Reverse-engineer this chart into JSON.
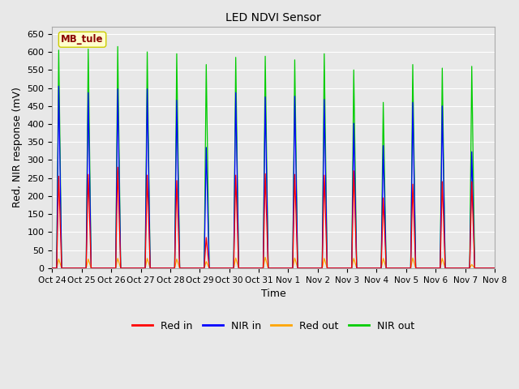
{
  "title": "LED NDVI Sensor",
  "xlabel": "Time",
  "ylabel": "Red, NIR response (mV)",
  "ylim": [
    0,
    670
  ],
  "yticks": [
    0,
    50,
    100,
    150,
    200,
    250,
    300,
    350,
    400,
    450,
    500,
    550,
    600,
    650
  ],
  "xtick_labels": [
    "Oct 24",
    "Oct 25",
    "Oct 26",
    "Oct 27",
    "Oct 28",
    "Oct 29",
    "Oct 30",
    "Oct 31",
    "Nov 1",
    "Nov 2",
    "Nov 3",
    "Nov 4",
    "Nov 5",
    "Nov 6",
    "Nov 7",
    "Nov 8"
  ],
  "annotation_text": "MB_tule",
  "colors": {
    "red_in": "#ff0000",
    "nir_in": "#0000ff",
    "red_out": "#ffa500",
    "nir_out": "#00cc00"
  },
  "legend_labels": [
    "Red in",
    "NIR in",
    "Red out",
    "NIR out"
  ],
  "plot_bg_color": "#e8e8e8",
  "fig_bg_color": "#e8e8e8",
  "n_cycles": 15,
  "red_in_peaks": [
    255,
    260,
    280,
    258,
    243,
    85,
    258,
    262,
    260,
    258,
    270,
    195,
    233,
    240,
    240
  ],
  "nir_in_peaks": [
    505,
    487,
    497,
    497,
    466,
    335,
    487,
    475,
    477,
    468,
    402,
    340,
    460,
    450,
    323
  ],
  "red_out_peaks": [
    25,
    25,
    27,
    27,
    25,
    18,
    28,
    30,
    28,
    27,
    27,
    27,
    28,
    27,
    10
  ],
  "nir_out_peaks": [
    605,
    608,
    615,
    600,
    595,
    565,
    585,
    588,
    578,
    595,
    550,
    460,
    565,
    555,
    560
  ]
}
